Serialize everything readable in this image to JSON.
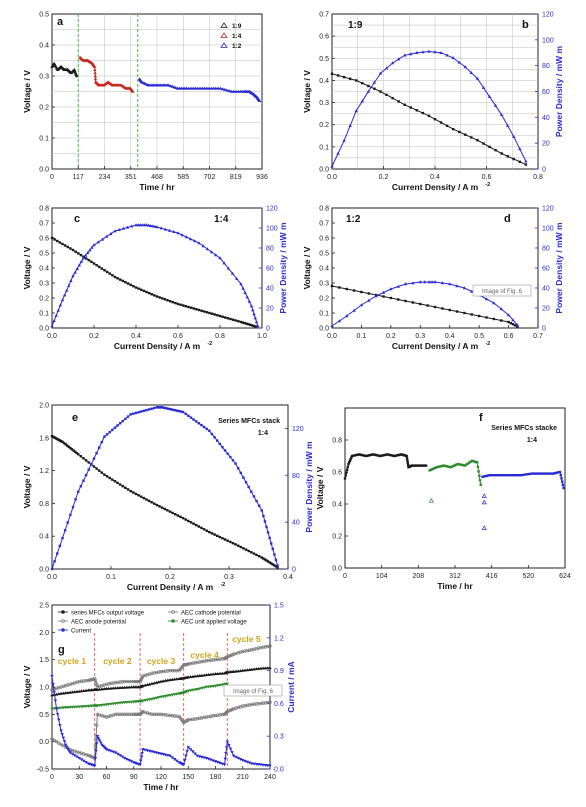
{
  "colors": {
    "black_series": "#1a1a1a",
    "blue_series": "#2b2bd4",
    "red_series": "#c8281e",
    "green_series": "#2e8b2e",
    "purple_series": "#6a1fc4",
    "gray_series": "#777777",
    "cycle_label": "#d4a017",
    "cycle_divider": "#e0424a",
    "green_divider": "#3fbf3f",
    "power_axis": "#2b2bd4"
  },
  "watermarks": [
    "Image of Fig. 6",
    "Image of Fig. 6"
  ],
  "chart_data": [
    {
      "panel": "a",
      "type": "line",
      "xlabel": "Time / hr",
      "ylabel": "Voltage / V",
      "xlim": [
        0,
        936
      ],
      "ylim": [
        0,
        0.5
      ],
      "xticks": [
        "0",
        "117",
        "234",
        "351",
        "468",
        "585",
        "702",
        "819",
        "936"
      ],
      "yticks": [
        "0.0",
        "0.1",
        "0.2",
        "0.3",
        "0.4",
        "0.5"
      ],
      "legend": [
        "1:9",
        "1:4",
        "1:2"
      ],
      "legend_position": "top-right",
      "grid": true,
      "series": [
        {
          "name": "1:9",
          "x": [
            0,
            10,
            25,
            40,
            55,
            70,
            85,
            100,
            110
          ],
          "y": [
            0.33,
            0.34,
            0.32,
            0.33,
            0.32,
            0.32,
            0.31,
            0.32,
            0.3
          ]
        },
        {
          "name": "1:4",
          "x": [
            125,
            140,
            160,
            180,
            190,
            195,
            210,
            230,
            250,
            270,
            290,
            310,
            330,
            350,
            360
          ],
          "y": [
            0.36,
            0.35,
            0.35,
            0.34,
            0.33,
            0.28,
            0.27,
            0.27,
            0.28,
            0.27,
            0.27,
            0.27,
            0.26,
            0.26,
            0.25
          ]
        },
        {
          "name": "1:2",
          "x": [
            390,
            400,
            430,
            460,
            490,
            520,
            560,
            600,
            650,
            700,
            750,
            800,
            850,
            880,
            900,
            915,
            925
          ],
          "y": [
            0.29,
            0.28,
            0.27,
            0.27,
            0.27,
            0.27,
            0.26,
            0.26,
            0.26,
            0.26,
            0.26,
            0.25,
            0.25,
            0.25,
            0.24,
            0.23,
            0.22
          ]
        }
      ],
      "vlines": [
        117,
        382
      ]
    },
    {
      "panel": "b",
      "type": "line",
      "label": "1:9",
      "xlabel": "Current Density / A m",
      "ylabel": "Voltage / V",
      "y2label": "Power Density / mW m",
      "xlim": [
        0,
        0.85
      ],
      "ylim": [
        0,
        0.7
      ],
      "y2lim": [
        0,
        120
      ],
      "xticks": [
        "0.0",
        "0.2",
        "0.4",
        "0.6",
        "0.8"
      ],
      "yticks": [
        "0.0",
        "0.1",
        "0.2",
        "0.3",
        "0.4",
        "0.5",
        "0.6",
        "0.7"
      ],
      "y2ticks": [
        "0",
        "20",
        "40",
        "60",
        "80",
        "100",
        "120"
      ],
      "grid": true,
      "series": [
        {
          "role": "voltage",
          "x": [
            0.0,
            0.1,
            0.2,
            0.3,
            0.4,
            0.5,
            0.6,
            0.7,
            0.8
          ],
          "y": [
            0.43,
            0.4,
            0.35,
            0.29,
            0.24,
            0.18,
            0.13,
            0.07,
            0.02
          ]
        },
        {
          "role": "power",
          "x": [
            0.0,
            0.05,
            0.1,
            0.15,
            0.2,
            0.25,
            0.3,
            0.35,
            0.4,
            0.45,
            0.5,
            0.55,
            0.6,
            0.65,
            0.7,
            0.75,
            0.8
          ],
          "y": [
            2,
            22,
            45,
            60,
            74,
            82,
            88,
            90,
            91,
            90,
            86,
            79,
            70,
            56,
            42,
            25,
            6
          ]
        }
      ]
    },
    {
      "panel": "c",
      "type": "line",
      "label": "1:4",
      "xlabel": "Current Density / A m",
      "ylabel": "Voltage / V",
      "y2label": "Power Density / mW m",
      "xlim": [
        0,
        1.0
      ],
      "ylim": [
        0,
        0.8
      ],
      "y2lim": [
        0,
        120
      ],
      "xticks": [
        "0.0",
        "0.2",
        "0.4",
        "0.6",
        "0.8",
        "1.0"
      ],
      "yticks": [
        "0.0",
        "0.1",
        "0.2",
        "0.3",
        "0.4",
        "0.5",
        "0.6",
        "0.7",
        "0.8"
      ],
      "y2ticks": [
        "0",
        "20",
        "40",
        "60",
        "80",
        "100",
        "120"
      ],
      "grid": true,
      "series": [
        {
          "role": "voltage",
          "x": [
            0.0,
            0.1,
            0.2,
            0.3,
            0.4,
            0.5,
            0.6,
            0.7,
            0.8,
            0.9,
            0.97
          ],
          "y": [
            0.6,
            0.52,
            0.43,
            0.34,
            0.27,
            0.21,
            0.16,
            0.12,
            0.08,
            0.04,
            0.01
          ]
        },
        {
          "role": "power",
          "x": [
            0.0,
            0.05,
            0.1,
            0.15,
            0.2,
            0.3,
            0.4,
            0.45,
            0.5,
            0.6,
            0.7,
            0.8,
            0.9,
            0.95,
            0.98
          ],
          "y": [
            2,
            28,
            52,
            70,
            83,
            97,
            103,
            103,
            101,
            95,
            85,
            70,
            44,
            22,
            2
          ]
        }
      ]
    },
    {
      "panel": "d",
      "type": "line",
      "label": "1:2",
      "xlabel": "Current Density / A m",
      "ylabel": "Voltage / V",
      "y2label": "Power Density / mW m",
      "xlim": [
        0,
        0.7
      ],
      "ylim": [
        0,
        0.8
      ],
      "y2lim": [
        0,
        120
      ],
      "xticks": [
        "0.0",
        "0.1",
        "0.2",
        "0.3",
        "0.4",
        "0.5",
        "0.6",
        "0.7"
      ],
      "yticks": [
        "0.0",
        "0.1",
        "0.2",
        "0.3",
        "0.4",
        "0.5",
        "0.6",
        "0.7",
        "0.8"
      ],
      "y2ticks": [
        "0",
        "20",
        "40",
        "60",
        "80",
        "100",
        "120"
      ],
      "grid": true,
      "series": [
        {
          "role": "voltage",
          "x": [
            0.0,
            0.1,
            0.2,
            0.3,
            0.4,
            0.5,
            0.6,
            0.63
          ],
          "y": [
            0.28,
            0.24,
            0.2,
            0.16,
            0.12,
            0.08,
            0.04,
            0.01
          ]
        },
        {
          "role": "power",
          "x": [
            0.0,
            0.05,
            0.1,
            0.15,
            0.2,
            0.25,
            0.3,
            0.33,
            0.35,
            0.4,
            0.45,
            0.5,
            0.55,
            0.6,
            0.63
          ],
          "y": [
            2,
            12,
            23,
            32,
            39,
            44,
            46,
            46,
            46,
            44,
            40,
            33,
            25,
            13,
            3
          ]
        }
      ]
    },
    {
      "panel": "e",
      "type": "line",
      "label": "Series MFCs stack",
      "sublabel": "1:4",
      "xlabel": "Current Density / A m",
      "ylabel": "Voltage / V",
      "y2label": "Power Density / mW m",
      "xlim": [
        0,
        0.45
      ],
      "ylim": [
        0,
        2.0
      ],
      "y2lim": [
        0,
        140
      ],
      "xticks": [
        "0.0",
        "0.1",
        "0.2",
        "0.3",
        "0.4"
      ],
      "yticks": [
        "0.0",
        "0.4",
        "0.8",
        "1.2",
        "1.6",
        "2.0"
      ],
      "y2ticks": [
        "0",
        "40",
        "80",
        "120"
      ],
      "grid": false,
      "series": [
        {
          "role": "voltage",
          "x": [
            0.0,
            0.02,
            0.05,
            0.1,
            0.15,
            0.2,
            0.25,
            0.3,
            0.35,
            0.4,
            0.43
          ],
          "y": [
            1.62,
            1.55,
            1.4,
            1.15,
            0.95,
            0.78,
            0.62,
            0.45,
            0.3,
            0.14,
            0.02
          ]
        },
        {
          "role": "power",
          "x": [
            0.0,
            0.05,
            0.1,
            0.15,
            0.2,
            0.21,
            0.25,
            0.3,
            0.35,
            0.4,
            0.43
          ],
          "y": [
            0,
            66,
            113,
            132,
            138,
            138,
            134,
            118,
            90,
            50,
            3
          ]
        }
      ]
    },
    {
      "panel": "f",
      "type": "line",
      "label": "Series MFCs stacke",
      "sublabel": "1:4",
      "xlabel": "Time / hr",
      "ylabel": "Voltage / V",
      "xlim": [
        0,
        624
      ],
      "ylim": [
        0,
        1.0
      ],
      "xticks": [
        "0",
        "104",
        "208",
        "312",
        "416",
        "520",
        "624"
      ],
      "yticks": [
        "0.0",
        "0.2",
        "0.4",
        "0.6",
        "0.8"
      ],
      "grid": false,
      "series": [
        {
          "role": "stage1",
          "x": [
            0,
            10,
            20,
            40,
            60,
            80,
            100,
            120,
            140,
            160,
            175,
            180,
            190,
            210,
            230
          ],
          "y": [
            0.56,
            0.65,
            0.7,
            0.71,
            0.7,
            0.71,
            0.7,
            0.71,
            0.7,
            0.71,
            0.7,
            0.63,
            0.64,
            0.64,
            0.64
          ]
        },
        {
          "role": "stage2",
          "x": [
            240,
            260,
            280,
            300,
            320,
            340,
            360,
            375,
            385
          ],
          "y": [
            0.61,
            0.63,
            0.64,
            0.63,
            0.65,
            0.64,
            0.67,
            0.66,
            0.52
          ]
        },
        {
          "role": "stage3",
          "x": [
            390,
            410,
            440,
            470,
            500,
            530,
            560,
            590,
            610,
            620
          ],
          "y": [
            0.57,
            0.58,
            0.58,
            0.58,
            0.58,
            0.59,
            0.59,
            0.59,
            0.6,
            0.5
          ]
        }
      ],
      "outliers": [
        [
          245,
          0.42
        ],
        [
          395,
          0.45
        ],
        [
          395,
          0.41
        ],
        [
          395,
          0.25
        ]
      ]
    },
    {
      "panel": "g",
      "type": "line",
      "xlabel": "Time / hr",
      "ylabel": "Voltage / V",
      "y2label": "Current / mA",
      "xlim": [
        0,
        240
      ],
      "ylim": [
        -0.5,
        2.5
      ],
      "y2lim": [
        0,
        1.5
      ],
      "xticks": [
        "0",
        "30",
        "60",
        "90",
        "120",
        "150",
        "180",
        "210",
        "240"
      ],
      "yticks": [
        "-0.5",
        "0.0",
        "0.5",
        "1.0",
        "1.5",
        "2.0",
        "2.5"
      ],
      "y2ticks": [
        "0.0",
        "0.3",
        "0.6",
        "0.9",
        "1.2",
        "1.5"
      ],
      "cycles": [
        "cycle 1",
        "cycle 2",
        "cycle 3",
        "cycle 4",
        "cycle 5"
      ],
      "cycle_bounds": [
        47,
        97,
        145,
        193
      ],
      "legend": [
        "series MFCs output voltage",
        "AEC cathode potential",
        "AEC anode potential",
        "AEC unit applied voltage",
        "Current"
      ],
      "legend_position": "top",
      "grid": false,
      "series": [
        {
          "name": "series MFCs output voltage",
          "x": [
            0,
            10,
            20,
            30,
            40,
            47,
            50,
            60,
            70,
            80,
            90,
            97,
            100,
            110,
            120,
            130,
            140,
            145,
            150,
            160,
            170,
            180,
            190,
            193,
            200,
            210,
            220,
            230,
            240
          ],
          "y": [
            0.85,
            0.88,
            0.9,
            0.92,
            0.94,
            0.95,
            0.95,
            0.97,
            0.98,
            0.99,
            1.0,
            1.0,
            1.02,
            1.06,
            1.1,
            1.13,
            1.15,
            1.16,
            1.18,
            1.2,
            1.22,
            1.24,
            1.25,
            1.27,
            1.28,
            1.3,
            1.32,
            1.34,
            1.35
          ]
        },
        {
          "name": "AEC cathode potential",
          "x": [
            0,
            10,
            20,
            30,
            40,
            47,
            50,
            60,
            70,
            80,
            90,
            97,
            100,
            110,
            120,
            130,
            140,
            145,
            150,
            160,
            170,
            180,
            190,
            193,
            200,
            210,
            220,
            230,
            240
          ],
          "y": [
            0.95,
            1.0,
            1.05,
            1.1,
            1.12,
            1.15,
            1.0,
            1.05,
            1.08,
            1.1,
            1.1,
            1.1,
            1.2,
            1.25,
            1.28,
            1.3,
            1.3,
            1.4,
            1.42,
            1.45,
            1.48,
            1.5,
            1.52,
            1.55,
            1.6,
            1.65,
            1.68,
            1.72,
            1.75
          ]
        },
        {
          "name": "AEC anode potential",
          "x": [
            0,
            10,
            20,
            30,
            40,
            47,
            50,
            60,
            70,
            80,
            90,
            97,
            100,
            110,
            120,
            130,
            140,
            145,
            150,
            160,
            170,
            180,
            190,
            193,
            200,
            210,
            220,
            230,
            240
          ],
          "y": [
            0.05,
            -0.05,
            -0.15,
            -0.2,
            -0.25,
            -0.3,
            0.5,
            0.45,
            0.5,
            0.5,
            0.5,
            0.5,
            0.55,
            0.5,
            0.5,
            0.48,
            0.46,
            0.35,
            0.4,
            0.42,
            0.45,
            0.48,
            0.5,
            0.55,
            0.6,
            0.65,
            0.68,
            0.7,
            0.72
          ]
        },
        {
          "name": "AEC unit applied voltage",
          "x": [
            0,
            10,
            20,
            30,
            40,
            47,
            50,
            60,
            70,
            80,
            90,
            97,
            100,
            110,
            120,
            130,
            140,
            145,
            150,
            160,
            170,
            180,
            190,
            193
          ],
          "y": [
            0.6,
            0.62,
            0.63,
            0.64,
            0.65,
            0.66,
            0.66,
            0.68,
            0.7,
            0.72,
            0.73,
            0.74,
            0.75,
            0.78,
            0.82,
            0.85,
            0.88,
            0.9,
            0.93,
            0.96,
            1.0,
            1.02,
            1.05,
            1.06
          ]
        },
        {
          "name": "Current",
          "axis": "y2",
          "x": [
            0,
            5,
            10,
            15,
            20,
            30,
            40,
            47,
            50,
            55,
            60,
            70,
            80,
            90,
            97,
            100,
            110,
            120,
            130,
            140,
            145,
            150,
            160,
            170,
            180,
            190,
            193,
            200,
            210,
            220,
            230,
            240
          ],
          "y": [
            0.85,
            0.55,
            0.35,
            0.22,
            0.15,
            0.1,
            0.05,
            0.03,
            0.3,
            0.22,
            0.18,
            0.15,
            0.1,
            0.06,
            0.04,
            0.18,
            0.16,
            0.14,
            0.12,
            0.06,
            0.04,
            0.2,
            0.12,
            0.1,
            0.07,
            0.04,
            0.25,
            0.12,
            0.08,
            0.05,
            0.04,
            0.03
          ]
        }
      ]
    }
  ]
}
